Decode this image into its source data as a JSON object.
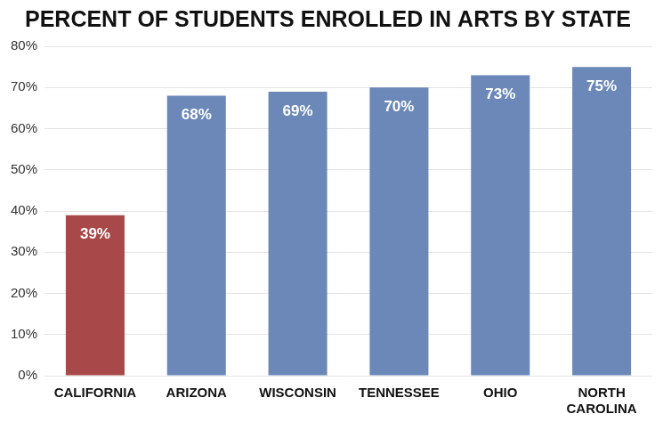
{
  "chart_data": {
    "type": "bar",
    "title": "PERCENT OF STUDENTS ENROLLED IN ARTS BY STATE",
    "categories": [
      "CALIFORNIA",
      "ARIZONA",
      "WISCONSIN",
      "TENNESSEE",
      "OHIO",
      "NORTH CAROLINA"
    ],
    "values": [
      39,
      68,
      69,
      70,
      73,
      75
    ],
    "value_labels": [
      "39%",
      "68%",
      "69%",
      "70%",
      "73%",
      "75%"
    ],
    "colors": [
      "#a84848",
      "#6b88b8",
      "#6b88b8",
      "#6b88b8",
      "#6b88b8",
      "#6b88b8"
    ],
    "ylim": [
      0,
      80
    ],
    "yticks": [
      {
        "value": 0,
        "label": "0%"
      },
      {
        "value": 10,
        "label": "10%"
      },
      {
        "value": 20,
        "label": "20%"
      },
      {
        "value": 30,
        "label": "30%"
      },
      {
        "value": 40,
        "label": "40%"
      },
      {
        "value": 50,
        "label": "50%"
      },
      {
        "value": 60,
        "label": "60%"
      },
      {
        "value": 70,
        "label": "70%"
      },
      {
        "value": 80,
        "label": "80%"
      }
    ],
    "grid": true,
    "data_labels": true
  }
}
